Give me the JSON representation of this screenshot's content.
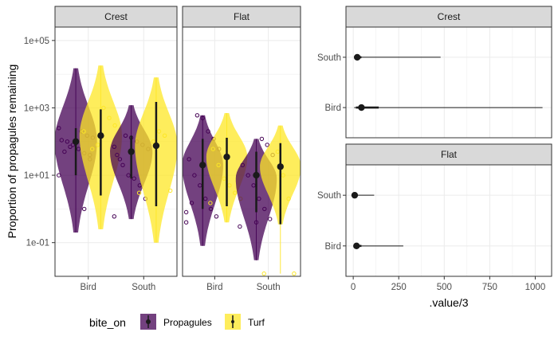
{
  "colors": {
    "propagules": "#440154",
    "turf": "#FDE725",
    "strip_bg": "#D9D9D9",
    "grid": "#EBEBEB",
    "point": "#1A1A1A"
  },
  "chart_data": [
    {
      "type": "violin",
      "ylabel": "Proportion of propagules remaining",
      "y_scale": "log10",
      "ylim": [
        0.01,
        250000
      ],
      "y_ticks": [
        0.1,
        10,
        1000,
        100000
      ],
      "y_tick_labels": [
        "1e-01",
        "1e+01",
        "1e+03",
        "1e+05"
      ],
      "categories": [
        "Bird",
        "South"
      ],
      "panels": [
        {
          "facet": "Crest",
          "groups": [
            {
              "category": "Bird",
              "series": "Propagules",
              "median": 100,
              "low": 10,
              "high": 250,
              "whisker_low": 0.2,
              "whisker_high": 15000,
              "v_min": 0.2,
              "v_max": 15000,
              "v_peak": 100,
              "v_halfwidth": 0.85,
              "points": [
                10,
                30,
                45,
                60,
                80,
                100,
                110,
                130,
                150,
                200,
                90,
                70,
                50,
                250,
                40,
                1
              ]
            },
            {
              "category": "Bird",
              "series": "Turf",
              "median": 150,
              "low": 2.5,
              "high": 900,
              "whisker_low": 0.25,
              "whisker_high": 18000,
              "v_min": 0.25,
              "v_max": 18000,
              "v_peak": 150,
              "v_halfwidth": 0.85,
              "points": [
                200,
                300,
                500,
                1000,
                80,
                60
              ]
            },
            {
              "category": "South",
              "series": "Propagules",
              "median": 50,
              "low": 8,
              "high": 150,
              "whisker_low": 0.5,
              "whisker_high": 1200,
              "v_min": 0.5,
              "v_max": 1200,
              "v_peak": 50,
              "v_halfwidth": 0.85,
              "points": [
                0.6,
                2,
                5,
                8,
                10,
                20,
                40,
                60,
                80,
                100,
                130,
                150,
                30,
                70
              ]
            },
            {
              "category": "South",
              "series": "Turf",
              "median": 75,
              "low": 1.2,
              "high": 1500,
              "whisker_low": 0.1,
              "whisker_high": 8000,
              "v_min": 0.1,
              "v_max": 8000,
              "v_peak": 75,
              "v_halfwidth": 0.85,
              "points": [
                3,
                3.5,
                150,
                200,
                100
              ]
            }
          ]
        },
        {
          "facet": "Flat",
          "groups": [
            {
              "category": "Bird",
              "series": "Propagules",
              "median": 20,
              "low": 1,
              "high": 120,
              "whisker_low": 0.08,
              "whisker_high": 600,
              "v_min": 0.08,
              "v_max": 600,
              "v_peak": 20,
              "v_halfwidth": 0.85,
              "points": [
                0.4,
                0.6,
                1,
                2,
                5,
                10,
                30,
                60,
                120,
                200,
                500,
                600,
                1.5,
                0.8
              ]
            },
            {
              "category": "Bird",
              "series": "Turf",
              "median": 35,
              "low": 1.2,
              "high": 130,
              "whisker_low": 0.4,
              "whisker_high": 700,
              "v_min": 0.4,
              "v_max": 700,
              "v_peak": 35,
              "v_halfwidth": 0.85,
              "points": [
                1.5,
                2,
                3,
                5,
                8,
                20,
                60
              ]
            },
            {
              "category": "South",
              "series": "Propagules",
              "median": 10,
              "low": 0.8,
              "high": 50,
              "whisker_low": 0.03,
              "whisker_high": 120,
              "v_min": 0.03,
              "v_max": 120,
              "v_peak": 8,
              "v_halfwidth": 0.85,
              "points": [
                0.3,
                0.5,
                1,
                2,
                5,
                10,
                20,
                40,
                80,
                120,
                0.4
              ]
            },
            {
              "category": "South",
              "series": "Turf",
              "median": 18,
              "low": 0.35,
              "high": 90,
              "whisker_low": 0.012,
              "whisker_high": 300,
              "v_min": 0.35,
              "v_max": 300,
              "v_peak": 18,
              "v_halfwidth": 0.85,
              "points": [
                0.012,
                0.012,
                2,
                10,
                50
              ]
            }
          ]
        }
      ]
    },
    {
      "type": "pointrange",
      "xlabel": ".value/3",
      "xlim": [
        -40,
        1090
      ],
      "x_ticks": [
        0,
        250,
        500,
        750,
        1000
      ],
      "x_tick_labels": [
        "0",
        "250",
        "500",
        "750",
        "1000"
      ],
      "categories": [
        "Bird",
        "South"
      ],
      "panels": [
        {
          "facet": "Crest",
          "rows": [
            {
              "category": "South",
              "point": 22,
              "thick_low": 8,
              "thick_high": 45,
              "thin_low": 5,
              "thin_high": 480
            },
            {
              "category": "Bird",
              "point": 45,
              "thick_low": 15,
              "thick_high": 140,
              "thin_low": 5,
              "thin_high": 1040
            }
          ]
        },
        {
          "facet": "Flat",
          "rows": [
            {
              "category": "South",
              "point": 8,
              "thick_low": 3,
              "thick_high": 20,
              "thin_low": 1,
              "thin_high": 115
            },
            {
              "category": "Bird",
              "point": 18,
              "thick_low": 5,
              "thick_high": 45,
              "thin_low": 2,
              "thin_high": 275
            }
          ]
        }
      ]
    }
  ],
  "legend": {
    "title": "bite_on",
    "items": [
      {
        "label": "Propagules",
        "series": "Propagules"
      },
      {
        "label": "Turf",
        "series": "Turf"
      }
    ]
  }
}
